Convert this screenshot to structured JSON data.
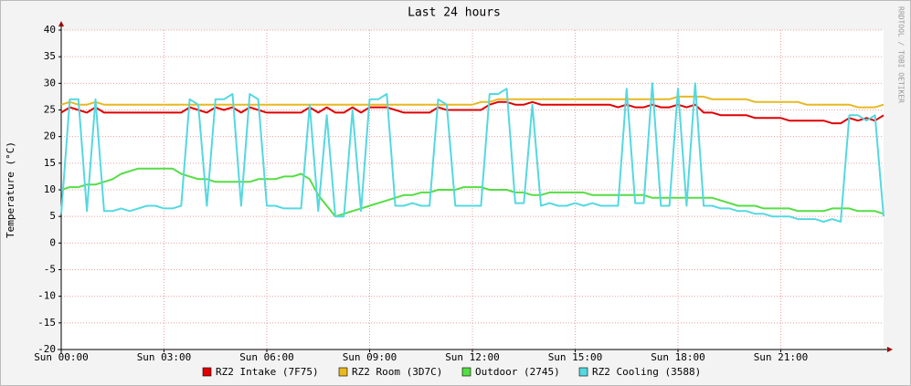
{
  "chart_data": {
    "type": "line",
    "title": "Last 24 hours",
    "y_label": "Temperature (°C)",
    "watermark": "RRDTOOL / TOBI OETIKER",
    "x": [
      0,
      0.25,
      0.5,
      0.75,
      1,
      1.25,
      1.5,
      1.75,
      2,
      2.25,
      2.5,
      2.75,
      3,
      3.25,
      3.5,
      3.75,
      4,
      4.25,
      4.5,
      4.75,
      5,
      5.25,
      5.5,
      5.75,
      6,
      6.25,
      6.5,
      6.75,
      7,
      7.25,
      7.5,
      7.75,
      8,
      8.25,
      8.5,
      8.75,
      9,
      9.25,
      9.5,
      9.75,
      10,
      10.25,
      10.5,
      10.75,
      11,
      11.25,
      11.5,
      11.75,
      12,
      12.25,
      12.5,
      12.75,
      13,
      13.25,
      13.5,
      13.75,
      14,
      14.25,
      14.5,
      14.75,
      15,
      15.25,
      15.5,
      15.75,
      16,
      16.25,
      16.5,
      16.75,
      17,
      17.25,
      17.5,
      17.75,
      18,
      18.25,
      18.5,
      18.75,
      19,
      19.25,
      19.5,
      19.75,
      20,
      20.25,
      20.5,
      20.75,
      21,
      21.25,
      21.5,
      21.75,
      22,
      22.25,
      22.5,
      22.75,
      23,
      23.25,
      23.5,
      23.75,
      24
    ],
    "xlim": [
      0,
      24
    ],
    "xticks": [
      {
        "value": 0,
        "label": "Sun 00:00"
      },
      {
        "value": 3,
        "label": "Sun 03:00"
      },
      {
        "value": 6,
        "label": "Sun 06:00"
      },
      {
        "value": 9,
        "label": "Sun 09:00"
      },
      {
        "value": 12,
        "label": "Sun 12:00"
      },
      {
        "value": 15,
        "label": "Sun 15:00"
      },
      {
        "value": 18,
        "label": "Sun 18:00"
      },
      {
        "value": 21,
        "label": "Sun 21:00"
      }
    ],
    "ylim": [
      -20,
      40
    ],
    "yticks": [
      -20,
      -15,
      -10,
      -5,
      0,
      5,
      10,
      15,
      20,
      25,
      30,
      35,
      40
    ],
    "grid": true,
    "series": [
      {
        "name": "RZ2 Intake (7F75)",
        "color": "#e00000",
        "values": [
          24.5,
          25.5,
          25,
          24.5,
          25.5,
          24.5,
          24.5,
          24.5,
          24.5,
          24.5,
          24.5,
          24.5,
          24.5,
          24.5,
          24.5,
          25.5,
          25,
          24.5,
          25.5,
          25,
          25.5,
          24.5,
          25.5,
          25,
          24.5,
          24.5,
          24.5,
          24.5,
          24.5,
          25.5,
          24.5,
          25.5,
          24.5,
          24.5,
          25.5,
          24.5,
          25.5,
          25.5,
          25.5,
          25,
          24.5,
          24.5,
          24.5,
          24.5,
          25.5,
          25,
          25,
          25,
          25,
          25,
          26,
          26.5,
          26.5,
          26,
          26,
          26.5,
          26,
          26,
          26,
          26,
          26,
          26,
          26,
          26,
          26,
          25.5,
          26,
          25.5,
          25.5,
          26,
          25.5,
          25.5,
          26,
          25.5,
          26,
          24.5,
          24.5,
          24,
          24,
          24,
          24,
          23.5,
          23.5,
          23.5,
          23.5,
          23,
          23,
          23,
          23,
          23,
          22.5,
          22.5,
          23.5,
          23,
          23.5,
          23,
          24
        ]
      },
      {
        "name": "RZ2 Room (3D7C)",
        "color": "#e8b820",
        "values": [
          26,
          26.5,
          26,
          26,
          26.5,
          26,
          26,
          26,
          26,
          26,
          26,
          26,
          26,
          26,
          26,
          26,
          26,
          26,
          26,
          26,
          26,
          26,
          26,
          26,
          26,
          26,
          26,
          26,
          26,
          26,
          26,
          26,
          26,
          26,
          26,
          26,
          26,
          26,
          26,
          26,
          26,
          26,
          26,
          26,
          26,
          26,
          26,
          26,
          26,
          26.5,
          26.5,
          27,
          27,
          27,
          27,
          27,
          27,
          27,
          27,
          27,
          27,
          27,
          27,
          27,
          27,
          27,
          27,
          27,
          27,
          27,
          27,
          27,
          27.5,
          27.5,
          27.5,
          27.5,
          27,
          27,
          27,
          27,
          27,
          26.5,
          26.5,
          26.5,
          26.5,
          26.5,
          26.5,
          26,
          26,
          26,
          26,
          26,
          26,
          25.5,
          25.5,
          25.5,
          26
        ]
      },
      {
        "name": "Outdoor (2745)",
        "color": "#55dd44",
        "values": [
          10,
          10.5,
          10.5,
          11,
          11,
          11.5,
          12,
          13,
          13.5,
          14,
          14,
          14,
          14,
          14,
          13,
          12.5,
          12,
          12,
          11.5,
          11.5,
          11.5,
          11.5,
          11.5,
          12,
          12,
          12,
          12.5,
          12.5,
          13,
          12,
          9,
          7,
          5,
          5.5,
          6,
          6.5,
          7,
          7.5,
          8,
          8.5,
          9,
          9,
          9.5,
          9.5,
          10,
          10,
          10,
          10.5,
          10.5,
          10.5,
          10,
          10,
          10,
          9.5,
          9.5,
          9,
          9,
          9.5,
          9.5,
          9.5,
          9.5,
          9.5,
          9,
          9,
          9,
          9,
          9,
          9,
          9,
          8.5,
          8.5,
          8.5,
          8.5,
          8.5,
          8.5,
          8.5,
          8.5,
          8,
          7.5,
          7,
          7,
          7,
          6.5,
          6.5,
          6.5,
          6.5,
          6,
          6,
          6,
          6,
          6.5,
          6.5,
          6.5,
          6,
          6,
          6,
          5.5
        ]
      },
      {
        "name": "RZ2 Cooling (3588)",
        "color": "#55d8e0",
        "values": [
          5.5,
          27,
          27,
          6,
          27,
          6,
          6,
          6.5,
          6,
          6.5,
          7,
          7,
          6.5,
          6.5,
          7,
          27,
          26,
          7,
          27,
          27,
          28,
          7,
          28,
          27,
          7,
          7,
          6.5,
          6.5,
          6.5,
          26,
          6,
          24,
          5,
          5,
          25,
          6,
          27,
          27,
          28,
          7,
          7,
          7.5,
          7,
          7,
          27,
          26,
          7,
          7,
          7,
          7,
          28,
          28,
          29,
          7.5,
          7.5,
          26,
          7,
          7.5,
          7,
          7,
          7.5,
          7,
          7.5,
          7,
          7,
          7,
          29,
          7.5,
          7.5,
          30,
          7,
          7,
          29,
          7,
          30,
          7,
          7,
          6.5,
          6.5,
          6,
          6,
          5.5,
          5.5,
          5,
          5,
          5,
          4.5,
          4.5,
          4.5,
          4,
          4.5,
          4,
          24,
          24,
          23,
          24,
          5
        ]
      }
    ]
  }
}
